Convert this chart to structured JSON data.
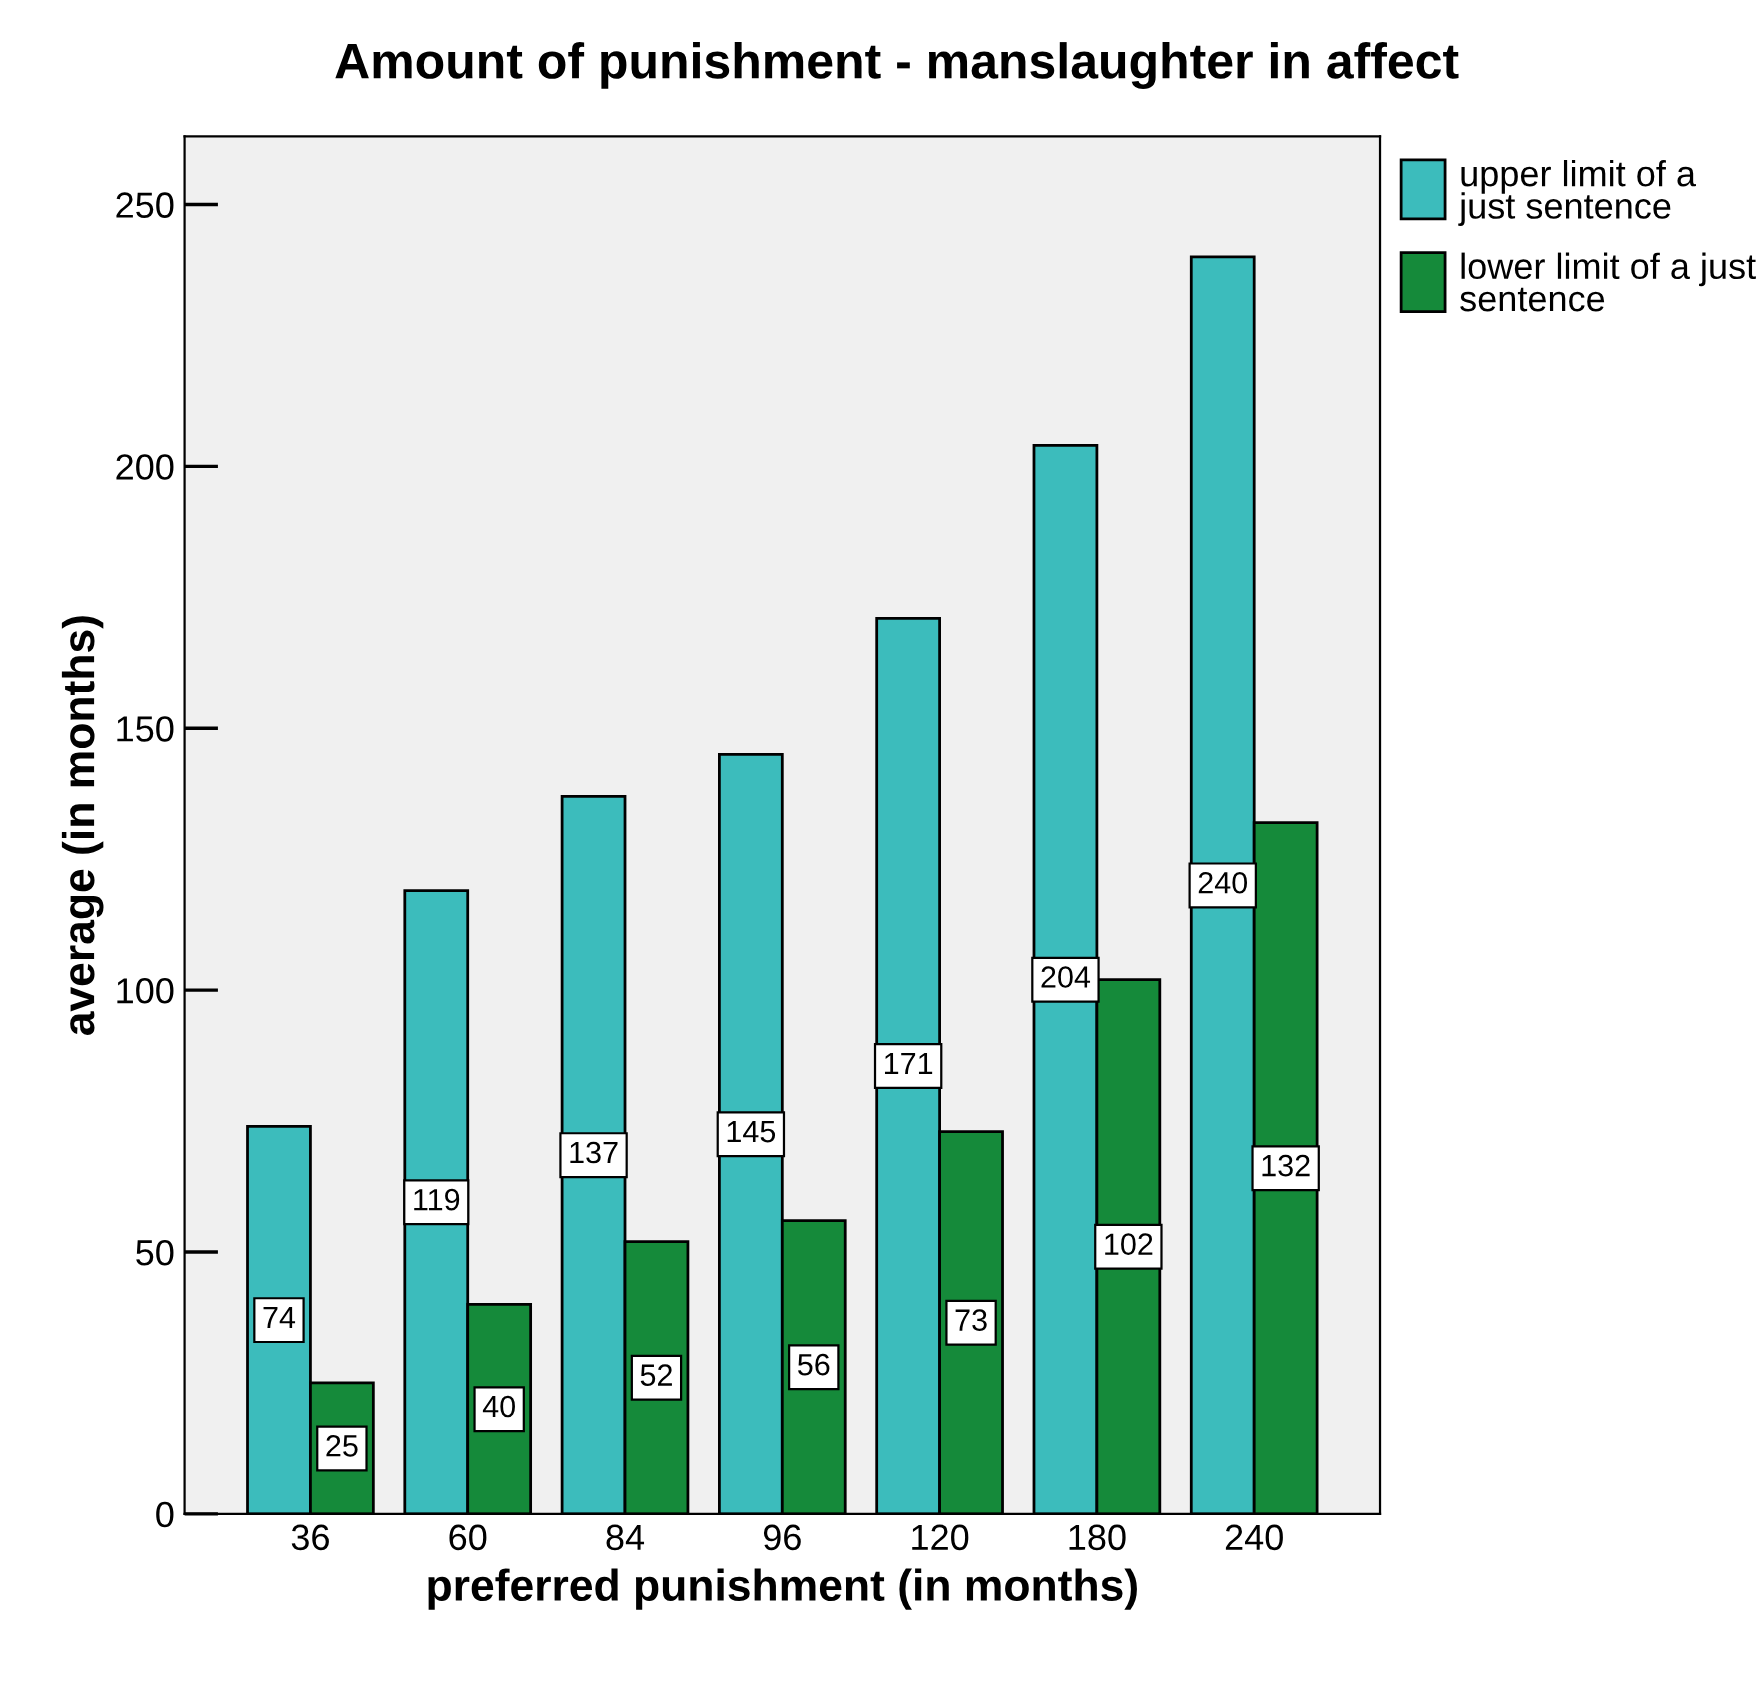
{
  "chart_data": {
    "type": "bar",
    "title": "Amount of punishment - manslaughter in affect",
    "xlabel": "preferred punishment (in months)",
    "ylabel": "average (in months)",
    "categories": [
      "36",
      "60",
      "84",
      "96",
      "120",
      "180",
      "240"
    ],
    "series": [
      {
        "name": "upper limit of a just sentence",
        "color": "#3cbcbc",
        "values": [
          74,
          119,
          137,
          145,
          171,
          204,
          240
        ]
      },
      {
        "name": "lower limit of a just sentence",
        "color": "#158a3a",
        "values": [
          25,
          40,
          52,
          56,
          73,
          102,
          132
        ]
      }
    ],
    "ylim": [
      0,
      263
    ],
    "yticks": [
      0,
      50,
      100,
      150,
      200,
      250
    ],
    "data_labels": true,
    "grid": false,
    "legend": "top right"
  }
}
